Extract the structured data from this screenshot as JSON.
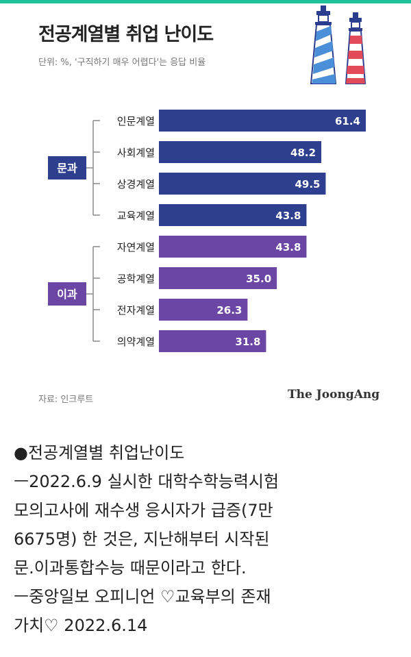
{
  "header": {
    "title": "전공계열별 취업 난이도",
    "unit": "단위: %, '구직하기 매우 어렵다'는 응답 비율"
  },
  "footer": {
    "source": "자료: 인크루트",
    "brand": "The JoongAng"
  },
  "colors": {
    "liberal_arts": "#2f3f8f",
    "science": "#6b46a5",
    "accent_bar": "#1fc39a"
  },
  "chart_data": {
    "type": "bar",
    "orientation": "horizontal",
    "title": "전공계열별 취업 난이도",
    "unit": "%",
    "groups": [
      {
        "name": "문과",
        "color": "#2f3f8f",
        "categories": [
          "인문계열",
          "사회계열",
          "상경계열",
          "교육계열"
        ],
        "values": [
          61.4,
          48.2,
          49.5,
          43.8
        ],
        "labels": [
          "61.4",
          "48.2",
          "49.5",
          "43.8"
        ]
      },
      {
        "name": "이과",
        "color": "#6b46a5",
        "categories": [
          "자연계열",
          "공학계열",
          "전자계열",
          "의약계열"
        ],
        "values": [
          43.8,
          35.0,
          26.3,
          31.8
        ],
        "labels": [
          "43.8",
          "35.0",
          "26.3",
          "31.8"
        ]
      }
    ],
    "xlim": [
      0,
      61.4
    ],
    "grid": false,
    "legend": "none"
  },
  "text": {
    "line1": "●전공계열별 취업난이도",
    "line2": "ㅡ2022.6.9 실시한 대학수학능력시험",
    "line3": "모의고사에 재수생 응시자가 급증(7만",
    "line4": "6675명) 한 것은, 지난해부터 시작된",
    "line5": "문.이과통합수능 때문이라고 한다.",
    "line6": "ㅡ중앙일보 오피니언 ♡교육부의 존재",
    "line7": "가치♡ 2022.6.14"
  }
}
